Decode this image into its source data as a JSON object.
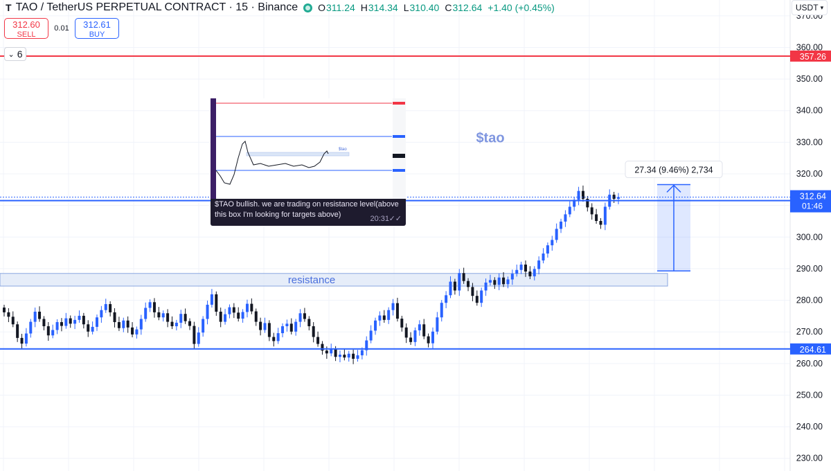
{
  "header": {
    "title": "TAO / TetherUS PERPETUAL CONTRACT · 15 · Binance",
    "o_label": "O",
    "o": "311.24",
    "h_label": "H",
    "h": "314.34",
    "l_label": "L",
    "l": "310.40",
    "c_label": "C",
    "c": "312.64",
    "change": "+1.40 (+0.45%)",
    "currency": "USDT"
  },
  "trade": {
    "sell_price": "312.60",
    "sell_label": "SELL",
    "spread": "0.01",
    "buy_price": "312.61",
    "buy_label": "BUY"
  },
  "indicators_count": "6",
  "colors": {
    "up": "#089981",
    "down": "#131722",
    "line_blue": "#2962ff",
    "line_red": "#f23645",
    "box_fill": "#dbe6f7",
    "label_blue": "#4a6fdc"
  },
  "chart_data": {
    "type": "candlestick",
    "ylim": [
      226,
      375
    ],
    "y_ticks": [
      230,
      240,
      250,
      260,
      270,
      280,
      290,
      300,
      310,
      320,
      330,
      340,
      350,
      360,
      370
    ],
    "x_ticks": [],
    "grid": true,
    "horizontal_lines": [
      {
        "value": 357.26,
        "color": "#f23645",
        "label": "357.26"
      },
      {
        "value": 311.54,
        "color": "#2962ff",
        "label": "311.54"
      },
      {
        "value": 264.61,
        "color": "#2962ff",
        "label": "264.61"
      }
    ],
    "last_price": {
      "value": 312.64,
      "label": "312.64",
      "countdown": "01:46"
    },
    "resistance_box": {
      "low": 284.5,
      "high": 288.5,
      "label": "resistance"
    },
    "measure": {
      "from": 289.3,
      "to": 316.6,
      "label": "27.34 (9.46%) 2,734"
    },
    "annotation": {
      "text": "$tao",
      "value": 331.5
    },
    "candles_close": [
      276.2,
      274.8,
      272.4,
      268.1,
      266.3,
      269.5,
      273.2,
      276.4,
      274.1,
      271.8,
      268.9,
      270.6,
      273.1,
      271.9,
      274.3,
      272.6,
      273.8,
      275.1,
      272.4,
      270.1,
      271.6,
      274.6,
      276.9,
      278.8,
      276.2,
      273.1,
      271.2,
      273.6,
      271.4,
      269.2,
      270.8,
      274.1,
      277.6,
      279.4,
      276.2,
      274.6,
      275.9,
      273.2,
      271.8,
      272.9,
      275.7,
      273.4,
      271.9,
      266.2,
      269.8,
      274.1,
      278.6,
      281.9,
      276.4,
      273.2,
      275.6,
      277.8,
      276.1,
      274.2,
      276.3,
      278.9,
      276.5,
      273.2,
      270.6,
      272.8,
      268.4,
      267.1,
      269.6,
      271.8,
      272.6,
      270.1,
      273.2,
      275.9,
      274.1,
      271.8,
      268.4,
      266.2,
      264.1,
      263.2,
      264.6,
      262.1,
      262.8,
      261.9,
      263.1,
      261.5,
      262.6,
      264.2,
      267.3,
      270.4,
      273.6,
      275.2,
      273.8,
      276.9,
      279.1,
      274.2,
      271.4,
      268.2,
      266.8,
      270.5,
      272.4,
      268.6,
      266.4,
      270.1,
      274.6,
      279.2,
      281.6,
      285.9,
      283.1,
      288.6,
      286.1,
      284.2,
      281.4,
      279.2,
      283.1,
      285.6,
      286.4,
      284.9,
      287.2,
      285.1,
      286.6,
      288.4,
      289.6,
      291.3,
      289.1,
      287.6,
      289.9,
      292.6,
      294.8,
      297.4,
      299.1,
      302.6,
      304.9,
      307.2,
      309.6,
      311.8,
      314.6,
      312.1,
      309.4,
      307.2,
      305.1,
      303.9,
      309.6,
      313.4,
      312.1,
      312.64
    ]
  },
  "inset": {
    "tag": "$tao",
    "message": "$TAO bullish. we are trading on resistance level(above this box I'm looking for targets above)",
    "time": "20:31",
    "ticks": "✓✓"
  }
}
